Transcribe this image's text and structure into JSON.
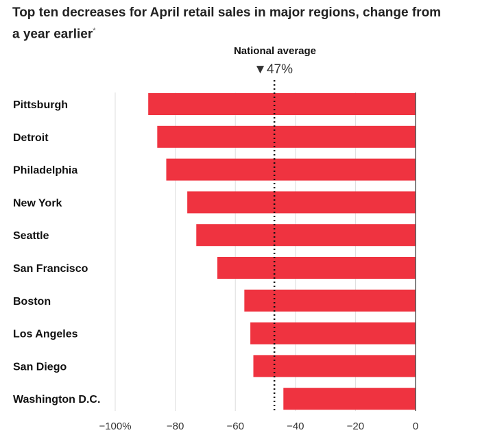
{
  "chart_data": {
    "type": "bar",
    "orientation": "horizontal",
    "title": "Top ten decreases for April retail sales in major regions, change from a year earlier",
    "title_footnote_mark": "*",
    "categories": [
      "Pittsburgh",
      "Detroit",
      "Philadelphia",
      "New York",
      "Seattle",
      "San Francisco",
      "Boston",
      "Los Angeles",
      "San Diego",
      "Washington D.C."
    ],
    "values": [
      -89,
      -86,
      -83,
      -76,
      -73,
      -66,
      -57,
      -55,
      -54,
      -44
    ],
    "xlim": [
      -100,
      0
    ],
    "ticks": [
      -100,
      -80,
      -60,
      -40,
      -20,
      0
    ],
    "tick_labels": [
      "−100%",
      "−80",
      "−60",
      "−40",
      "−20",
      "0"
    ],
    "reference_line": {
      "label": "National average",
      "value": -47,
      "value_label": "47%",
      "marker": "▼"
    },
    "bar_color": "#ef3340",
    "grid": true
  }
}
